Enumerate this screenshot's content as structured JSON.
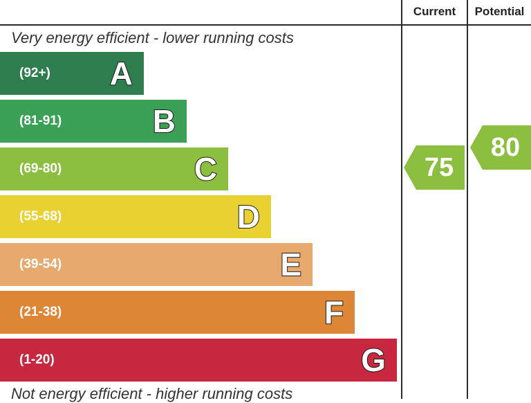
{
  "header": {
    "current_label": "Current",
    "potential_label": "Potential"
  },
  "captions": {
    "top": "Very energy efficient - lower running costs",
    "bottom": "Not energy efficient - higher running costs"
  },
  "chart_data": {
    "type": "bar",
    "categories": [
      "A",
      "B",
      "C",
      "D",
      "E",
      "F",
      "G"
    ],
    "ranges": [
      "(92+)",
      "(81-91)",
      "(69-80)",
      "(55-68)",
      "(39-54)",
      "(21-38)",
      "(1-20)"
    ],
    "colors": [
      "#2e7d4f",
      "#3aa055",
      "#8cbf3f",
      "#e8d131",
      "#e8a96c",
      "#dc8636",
      "#c8283f"
    ],
    "current": {
      "value": 75,
      "band": "C",
      "color": "#8cbf3f"
    },
    "potential": {
      "value": 80,
      "band": "C",
      "color": "#8cbf3f"
    }
  }
}
